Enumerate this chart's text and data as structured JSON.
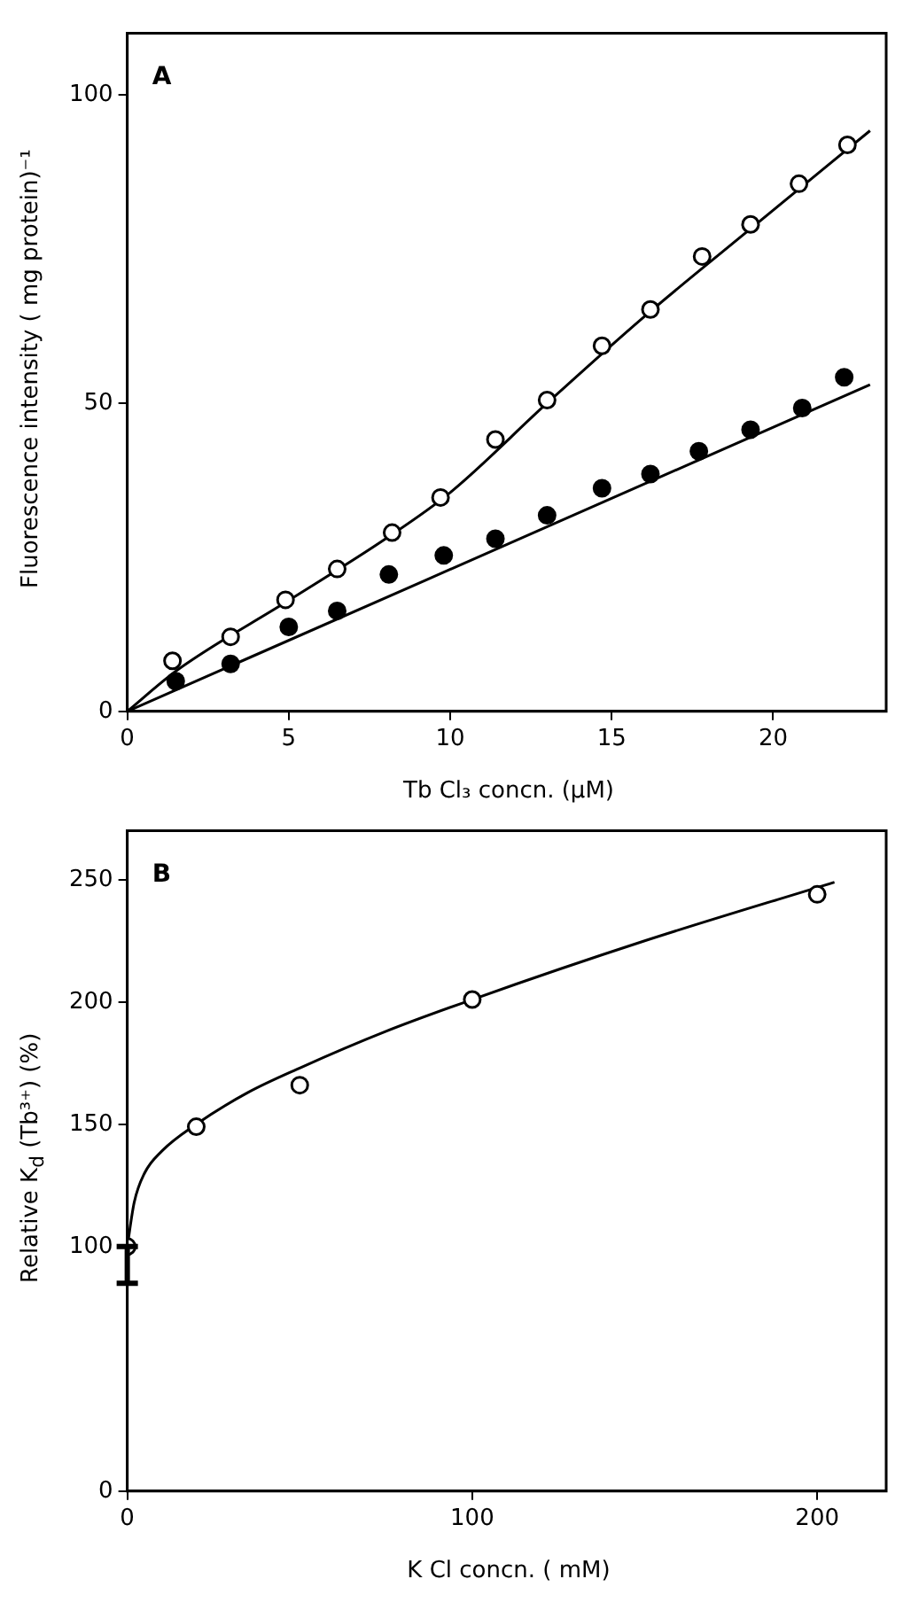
{
  "chart_data": [
    {
      "type": "scatter",
      "xlabel": "Tb Cl₃ concn. (μM)",
      "ylabel": "Fluorescence intensity ( mg protein)⁻¹",
      "annotations": [
        "A"
      ],
      "marker": "circle",
      "xlim": [
        0,
        23.5
      ],
      "ylim": [
        0,
        110
      ],
      "xticks": [
        0,
        5,
        10,
        15,
        20
      ],
      "yticks": [
        0,
        50,
        100
      ],
      "series": [
        {
          "color": "#ffffff",
          "x": [
            1.4,
            3.2,
            4.9,
            6.5,
            8.2,
            9.7,
            11.4,
            13.0,
            14.7,
            16.2,
            17.8,
            19.3,
            20.8,
            22.3
          ],
          "values": [
            8.2,
            12.1,
            18.1,
            23.1,
            29.0,
            34.7,
            44.1,
            50.5,
            59.3,
            65.2,
            73.8,
            79.0,
            85.6,
            91.9
          ]
        },
        {
          "color": "#000000",
          "x": [
            1.5,
            3.2,
            5.0,
            6.5,
            8.1,
            9.8,
            11.4,
            13.0,
            14.7,
            16.2,
            17.7,
            19.3,
            20.9,
            22.2
          ],
          "values": [
            4.9,
            7.7,
            13.7,
            16.3,
            22.2,
            25.3,
            28.0,
            31.8,
            36.2,
            38.5,
            42.2,
            45.7,
            49.2,
            54.2
          ]
        },
        {
          "type": "line",
          "marker": "none",
          "color": "#000000",
          "x": [
            0,
            1.5,
            5,
            8,
            10,
            13,
            16,
            19,
            23
          ],
          "values": [
            0,
            6.5,
            18,
            28,
            35.5,
            50,
            64,
            77,
            94.2
          ]
        },
        {
          "type": "line",
          "marker": "none",
          "color": "#000000",
          "x": [
            0,
            23
          ],
          "values": [
            0,
            53
          ]
        }
      ]
    },
    {
      "type": "scatter",
      "xlabel": "K Cl concn. ( mM)",
      "ylabel": "Relative K$_{d}$ (Tb³⁺) (%)",
      "annotations": [
        "B"
      ],
      "marker": "circle",
      "xlim": [
        0,
        220
      ],
      "ylim": [
        0,
        270
      ],
      "xticks": [
        0,
        100,
        200
      ],
      "yticks": [
        0,
        100,
        150,
        200,
        250
      ],
      "series": [
        {
          "color": "#ffffff",
          "x": [
            0,
            20,
            50,
            100,
            200
          ],
          "values": [
            100,
            149,
            166,
            201,
            244
          ],
          "errors": [
            [
              85,
              100
            ],
            null,
            null,
            null,
            null
          ]
        },
        {
          "type": "line",
          "marker": "none",
          "color": "#000000",
          "x": [
            0,
            2,
            5,
            10,
            20,
            35,
            50,
            75,
            100,
            150,
            205
          ],
          "values": [
            100,
            118,
            130,
            139,
            150,
            163,
            173,
            188,
            201,
            225,
            249
          ]
        }
      ]
    }
  ]
}
